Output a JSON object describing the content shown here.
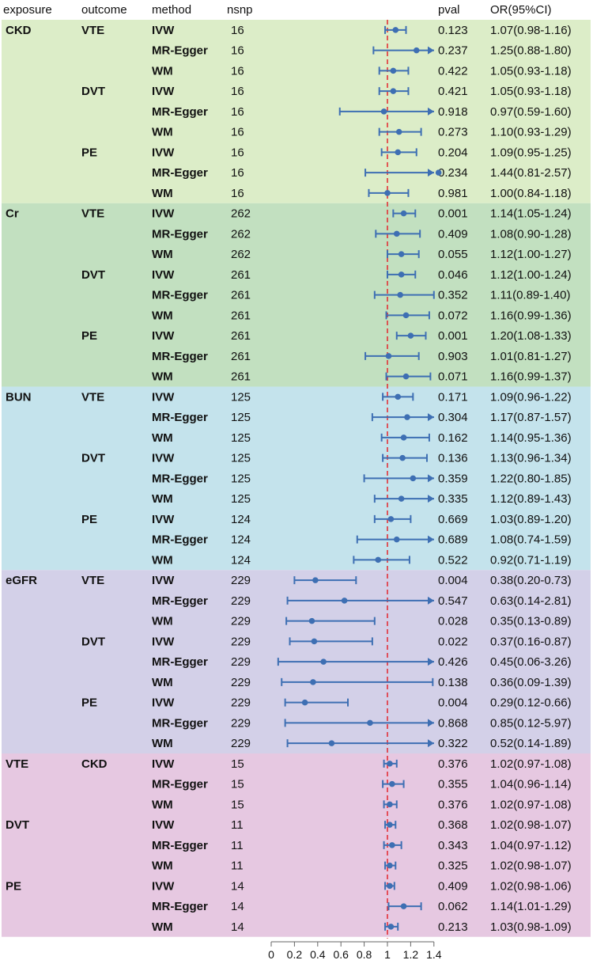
{
  "chart_data": {
    "type": "forest",
    "headers": {
      "exposure": "exposure",
      "outcome": "outcome",
      "method": "method",
      "nsnp": "nsnp",
      "pval": "pval",
      "or": "OR(95%CI)"
    },
    "x_axis": {
      "min": 0,
      "max": 1.4,
      "ticks": [
        "0",
        "0.2",
        "0.4",
        "0.6",
        "0.8",
        "1",
        "1.2",
        "1.4"
      ],
      "reference": 1
    },
    "group_colors": [
      "#dcedc8",
      "#c2e0c0",
      "#c4e3ec",
      "#d3d0e8",
      "#e6c8e1"
    ],
    "marker_color": "#3e6fb3",
    "reference_color": "#e3262d",
    "rows": [
      {
        "exposure": "CKD",
        "outcome": "VTE",
        "method": "IVW",
        "nsnp": "16",
        "pval": "0.123",
        "or_text": "1.07(0.98-1.16)",
        "or": 1.07,
        "lo": 0.98,
        "hi": 1.16,
        "group": 0
      },
      {
        "exposure": "",
        "outcome": "",
        "method": "MR-Egger",
        "nsnp": "16",
        "pval": "0.237",
        "or_text": "1.25(0.88-1.80)",
        "or": 1.25,
        "lo": 0.88,
        "hi": 1.8,
        "group": 0
      },
      {
        "exposure": "",
        "outcome": "",
        "method": "WM",
        "nsnp": "16",
        "pval": "0.422",
        "or_text": "1.05(0.93-1.18)",
        "or": 1.05,
        "lo": 0.93,
        "hi": 1.18,
        "group": 0
      },
      {
        "exposure": "",
        "outcome": "DVT",
        "method": "IVW",
        "nsnp": "16",
        "pval": "0.421",
        "or_text": "1.05(0.93-1.18)",
        "or": 1.05,
        "lo": 0.93,
        "hi": 1.18,
        "group": 0
      },
      {
        "exposure": "",
        "outcome": "",
        "method": "MR-Egger",
        "nsnp": "16",
        "pval": "0.918",
        "or_text": "0.97(0.59-1.60)",
        "or": 0.97,
        "lo": 0.59,
        "hi": 1.6,
        "group": 0
      },
      {
        "exposure": "",
        "outcome": "",
        "method": "WM",
        "nsnp": "16",
        "pval": "0.273",
        "or_text": "1.10(0.93-1.29)",
        "or": 1.1,
        "lo": 0.93,
        "hi": 1.29,
        "group": 0
      },
      {
        "exposure": "",
        "outcome": "PE",
        "method": "IVW",
        "nsnp": "16",
        "pval": "0.204",
        "or_text": "1.09(0.95-1.25)",
        "or": 1.09,
        "lo": 0.95,
        "hi": 1.25,
        "group": 0
      },
      {
        "exposure": "",
        "outcome": "",
        "method": "MR-Egger",
        "nsnp": "16",
        "pval": "0.234",
        "or_text": "1.44(0.81-2.57)",
        "or": 1.44,
        "lo": 0.81,
        "hi": 2.57,
        "group": 0
      },
      {
        "exposure": "",
        "outcome": "",
        "method": "WM",
        "nsnp": "16",
        "pval": "0.981",
        "or_text": "1.00(0.84-1.18)",
        "or": 1.0,
        "lo": 0.84,
        "hi": 1.18,
        "group": 0
      },
      {
        "exposure": "Cr",
        "outcome": "VTE",
        "method": "IVW",
        "nsnp": "262",
        "pval": "0.001",
        "or_text": "1.14(1.05-1.24)",
        "or": 1.14,
        "lo": 1.05,
        "hi": 1.24,
        "group": 1
      },
      {
        "exposure": "",
        "outcome": "",
        "method": "MR-Egger",
        "nsnp": "262",
        "pval": "0.409",
        "or_text": "1.08(0.90-1.28)",
        "or": 1.08,
        "lo": 0.9,
        "hi": 1.28,
        "group": 1
      },
      {
        "exposure": "",
        "outcome": "",
        "method": "WM",
        "nsnp": "262",
        "pval": "0.055",
        "or_text": "1.12(1.00-1.27)",
        "or": 1.12,
        "lo": 1.0,
        "hi": 1.27,
        "group": 1
      },
      {
        "exposure": "",
        "outcome": "DVT",
        "method": "IVW",
        "nsnp": "261",
        "pval": "0.046",
        "or_text": "1.12(1.00-1.24)",
        "or": 1.12,
        "lo": 1.0,
        "hi": 1.24,
        "group": 1
      },
      {
        "exposure": "",
        "outcome": "",
        "method": "MR-Egger",
        "nsnp": "261",
        "pval": "0.352",
        "or_text": "1.11(0.89-1.40)",
        "or": 1.11,
        "lo": 0.89,
        "hi": 1.4,
        "group": 1
      },
      {
        "exposure": "",
        "outcome": "",
        "method": "WM",
        "nsnp": "261",
        "pval": "0.072",
        "or_text": "1.16(0.99-1.36)",
        "or": 1.16,
        "lo": 0.99,
        "hi": 1.36,
        "group": 1
      },
      {
        "exposure": "",
        "outcome": "PE",
        "method": "IVW",
        "nsnp": "261",
        "pval": "0.001",
        "or_text": "1.20(1.08-1.33)",
        "or": 1.2,
        "lo": 1.08,
        "hi": 1.33,
        "group": 1
      },
      {
        "exposure": "",
        "outcome": "",
        "method": "MR-Egger",
        "nsnp": "261",
        "pval": "0.903",
        "or_text": "1.01(0.81-1.27)",
        "or": 1.01,
        "lo": 0.81,
        "hi": 1.27,
        "group": 1
      },
      {
        "exposure": "",
        "outcome": "",
        "method": "WM",
        "nsnp": "261",
        "pval": "0.071",
        "or_text": "1.16(0.99-1.37)",
        "or": 1.16,
        "lo": 0.99,
        "hi": 1.37,
        "group": 1
      },
      {
        "exposure": "BUN",
        "outcome": "VTE",
        "method": "IVW",
        "nsnp": "125",
        "pval": "0.171",
        "or_text": "1.09(0.96-1.22)",
        "or": 1.09,
        "lo": 0.96,
        "hi": 1.22,
        "group": 2
      },
      {
        "exposure": "",
        "outcome": "",
        "method": "MR-Egger",
        "nsnp": "125",
        "pval": "0.304",
        "or_text": "1.17(0.87-1.57)",
        "or": 1.17,
        "lo": 0.87,
        "hi": 1.57,
        "group": 2
      },
      {
        "exposure": "",
        "outcome": "",
        "method": "WM",
        "nsnp": "125",
        "pval": "0.162",
        "or_text": "1.14(0.95-1.36)",
        "or": 1.14,
        "lo": 0.95,
        "hi": 1.36,
        "group": 2
      },
      {
        "exposure": "",
        "outcome": "DVT",
        "method": "IVW",
        "nsnp": "125",
        "pval": "0.136",
        "or_text": "1.13(0.96-1.34)",
        "or": 1.13,
        "lo": 0.96,
        "hi": 1.34,
        "group": 2
      },
      {
        "exposure": "",
        "outcome": "",
        "method": "MR-Egger",
        "nsnp": "125",
        "pval": "0.359",
        "or_text": "1.22(0.80-1.85)",
        "or": 1.22,
        "lo": 0.8,
        "hi": 1.85,
        "group": 2
      },
      {
        "exposure": "",
        "outcome": "",
        "method": "WM",
        "nsnp": "125",
        "pval": "0.335",
        "or_text": "1.12(0.89-1.43)",
        "or": 1.12,
        "lo": 0.89,
        "hi": 1.43,
        "group": 2
      },
      {
        "exposure": "",
        "outcome": "PE",
        "method": "IVW",
        "nsnp": "124",
        "pval": "0.669",
        "or_text": "1.03(0.89-1.20)",
        "or": 1.03,
        "lo": 0.89,
        "hi": 1.2,
        "group": 2
      },
      {
        "exposure": "",
        "outcome": "",
        "method": "MR-Egger",
        "nsnp": "124",
        "pval": "0.689",
        "or_text": "1.08(0.74-1.59)",
        "or": 1.08,
        "lo": 0.74,
        "hi": 1.59,
        "group": 2
      },
      {
        "exposure": "",
        "outcome": "",
        "method": "WM",
        "nsnp": "124",
        "pval": "0.522",
        "or_text": "0.92(0.71-1.19)",
        "or": 0.92,
        "lo": 0.71,
        "hi": 1.19,
        "group": 2
      },
      {
        "exposure": "eGFR",
        "outcome": "VTE",
        "method": "IVW",
        "nsnp": "229",
        "pval": "0.004",
        "or_text": "0.38(0.20-0.73)",
        "or": 0.38,
        "lo": 0.2,
        "hi": 0.73,
        "group": 3
      },
      {
        "exposure": "",
        "outcome": "",
        "method": "MR-Egger",
        "nsnp": "229",
        "pval": "0.547",
        "or_text": "0.63(0.14-2.81)",
        "or": 0.63,
        "lo": 0.14,
        "hi": 2.81,
        "group": 3
      },
      {
        "exposure": "",
        "outcome": "",
        "method": "WM",
        "nsnp": "229",
        "pval": "0.028",
        "or_text": "0.35(0.13-0.89)",
        "or": 0.35,
        "lo": 0.13,
        "hi": 0.89,
        "group": 3
      },
      {
        "exposure": "",
        "outcome": "DVT",
        "method": "IVW",
        "nsnp": "229",
        "pval": "0.022",
        "or_text": "0.37(0.16-0.87)",
        "or": 0.37,
        "lo": 0.16,
        "hi": 0.87,
        "group": 3
      },
      {
        "exposure": "",
        "outcome": "",
        "method": "MR-Egger",
        "nsnp": "229",
        "pval": "0.426",
        "or_text": "0.45(0.06-3.26)",
        "or": 0.45,
        "lo": 0.06,
        "hi": 3.26,
        "group": 3
      },
      {
        "exposure": "",
        "outcome": "",
        "method": "WM",
        "nsnp": "229",
        "pval": "0.138",
        "or_text": "0.36(0.09-1.39)",
        "or": 0.36,
        "lo": 0.09,
        "hi": 1.39,
        "group": 3
      },
      {
        "exposure": "",
        "outcome": "PE",
        "method": "IVW",
        "nsnp": "229",
        "pval": "0.004",
        "or_text": "0.29(0.12-0.66)",
        "or": 0.29,
        "lo": 0.12,
        "hi": 0.66,
        "group": 3
      },
      {
        "exposure": "",
        "outcome": "",
        "method": "MR-Egger",
        "nsnp": "229",
        "pval": "0.868",
        "or_text": "0.85(0.12-5.97)",
        "or": 0.85,
        "lo": 0.12,
        "hi": 5.97,
        "group": 3
      },
      {
        "exposure": "",
        "outcome": "",
        "method": "WM",
        "nsnp": "229",
        "pval": "0.322",
        "or_text": "0.52(0.14-1.89)",
        "or": 0.52,
        "lo": 0.14,
        "hi": 1.89,
        "group": 3
      },
      {
        "exposure": "VTE",
        "outcome": "CKD",
        "method": "IVW",
        "nsnp": "15",
        "pval": "0.376",
        "or_text": "1.02(0.97-1.08)",
        "or": 1.02,
        "lo": 0.97,
        "hi": 1.08,
        "group": 4
      },
      {
        "exposure": "",
        "outcome": "",
        "method": "MR-Egger",
        "nsnp": "15",
        "pval": "0.355",
        "or_text": "1.04(0.96-1.14)",
        "or": 1.04,
        "lo": 0.96,
        "hi": 1.14,
        "group": 4
      },
      {
        "exposure": "",
        "outcome": "",
        "method": "WM",
        "nsnp": "15",
        "pval": "0.376",
        "or_text": "1.02(0.97-1.08)",
        "or": 1.02,
        "lo": 0.97,
        "hi": 1.08,
        "group": 4
      },
      {
        "exposure": "DVT",
        "outcome": "",
        "method": "IVW",
        "nsnp": "11",
        "pval": "0.368",
        "or_text": "1.02(0.98-1.07)",
        "or": 1.02,
        "lo": 0.98,
        "hi": 1.07,
        "group": 4
      },
      {
        "exposure": "",
        "outcome": "",
        "method": "MR-Egger",
        "nsnp": "11",
        "pval": "0.343",
        "or_text": "1.04(0.97-1.12)",
        "or": 1.04,
        "lo": 0.97,
        "hi": 1.12,
        "group": 4
      },
      {
        "exposure": "",
        "outcome": "",
        "method": "WM",
        "nsnp": "11",
        "pval": "0.325",
        "or_text": "1.02(0.98-1.07)",
        "or": 1.02,
        "lo": 0.98,
        "hi": 1.07,
        "group": 4
      },
      {
        "exposure": "PE",
        "outcome": "",
        "method": "IVW",
        "nsnp": "14",
        "pval": "0.409",
        "or_text": "1.02(0.98-1.06)",
        "or": 1.02,
        "lo": 0.98,
        "hi": 1.06,
        "group": 4
      },
      {
        "exposure": "",
        "outcome": "",
        "method": "MR-Egger",
        "nsnp": "14",
        "pval": "0.062",
        "or_text": "1.14(1.01-1.29)",
        "or": 1.14,
        "lo": 1.01,
        "hi": 1.29,
        "group": 4
      },
      {
        "exposure": "",
        "outcome": "",
        "method": "WM",
        "nsnp": "14",
        "pval": "0.213",
        "or_text": "1.03(0.98-1.09)",
        "or": 1.03,
        "lo": 0.98,
        "hi": 1.09,
        "group": 4
      }
    ]
  }
}
